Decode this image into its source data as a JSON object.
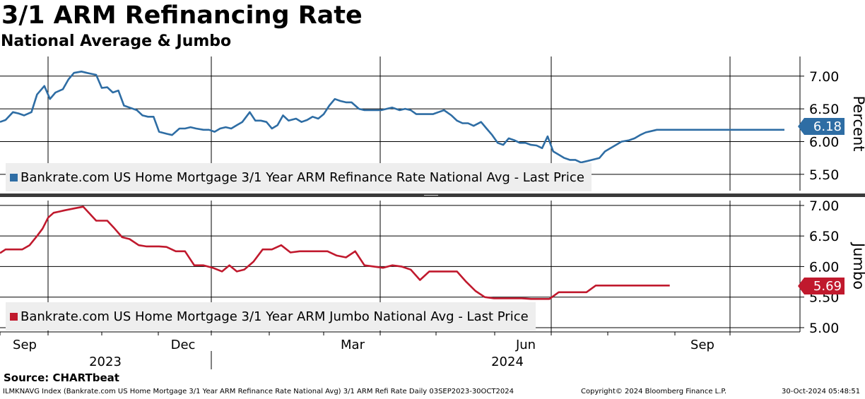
{
  "title": "3/1 ARM Refinancing Rate",
  "subtitle": "National Average & Jumbo",
  "chart_data": [
    {
      "type": "line",
      "panel": "top",
      "ylabel": "Percent",
      "ylim": [
        5.25,
        7.3
      ],
      "yticks": [
        "5.50",
        "6.00",
        "6.50",
        "7.00"
      ],
      "color": "#2e6da4",
      "legend": "Bankrate.com US Home Mortgage 3/1 Year ARM Refinance Rate National Avg - Last Price",
      "last_value_label": "6.18",
      "series": [
        {
          "name": "Bankrate.com US Home Mortgage 3/1 Year ARM Refinance Rate National Avg - Last Price",
          "x": [
            0,
            3,
            7,
            10,
            13,
            17,
            20,
            24,
            27,
            30,
            34,
            37,
            40,
            44,
            47,
            52,
            55,
            58,
            61,
            64,
            67,
            70,
            74,
            77,
            80,
            83,
            86,
            90,
            93,
            97,
            100,
            103,
            106,
            110,
            113,
            116,
            119,
            122,
            125,
            128,
            131,
            135,
            138,
            141,
            144,
            147,
            150,
            153,
            156,
            160,
            163,
            166,
            169,
            172,
            175,
            178,
            181,
            184,
            187,
            190,
            194,
            197,
            200,
            203,
            206,
            209,
            212,
            216,
            219,
            222,
            225,
            228,
            231,
            234,
            237,
            240,
            244,
            247,
            250,
            253,
            256,
            260,
            263,
            266,
            269,
            272,
            275,
            278,
            281,
            284,
            287,
            290,
            293,
            296,
            299,
            302,
            305,
            308,
            311,
            314,
            317,
            320,
            324,
            327,
            330,
            333,
            336,
            340,
            343,
            346,
            349,
            352,
            355,
            358,
            361,
            364,
            367,
            370,
            374,
            377,
            380,
            384,
            387,
            390,
            394,
            397,
            400,
            404,
            407,
            410,
            414,
            417,
            420,
            424
          ],
          "values": [
            6.3,
            6.33,
            6.45,
            6.43,
            6.4,
            6.45,
            6.72,
            6.85,
            6.65,
            6.75,
            6.8,
            6.95,
            7.05,
            7.07,
            7.05,
            7.02,
            6.82,
            6.83,
            6.75,
            6.78,
            6.55,
            6.52,
            6.48,
            6.4,
            6.38,
            6.38,
            6.15,
            6.12,
            6.1,
            6.2,
            6.2,
            6.22,
            6.2,
            6.18,
            6.18,
            6.15,
            6.2,
            6.22,
            6.2,
            6.25,
            6.3,
            6.45,
            6.32,
            6.32,
            6.3,
            6.2,
            6.25,
            6.4,
            6.32,
            6.35,
            6.3,
            6.33,
            6.38,
            6.35,
            6.42,
            6.55,
            6.65,
            6.62,
            6.6,
            6.6,
            6.5,
            6.48,
            6.48,
            6.48,
            6.48,
            6.5,
            6.52,
            6.48,
            6.5,
            6.48,
            6.42,
            6.42,
            6.42,
            6.42,
            6.45,
            6.48,
            6.4,
            6.32,
            6.28,
            6.28,
            6.24,
            6.3,
            6.2,
            6.1,
            5.98,
            5.95,
            6.05,
            6.02,
            5.98,
            5.98,
            5.95,
            5.94,
            5.9,
            6.08,
            5.85,
            5.8,
            5.75,
            5.72,
            5.72,
            5.68,
            5.7,
            5.72,
            5.75,
            5.85,
            5.9,
            5.95,
            6.0,
            6.02,
            6.05,
            6.1,
            6.14,
            6.16,
            6.18,
            6.18,
            6.18,
            6.18,
            6.18,
            6.18,
            6.18,
            6.18,
            6.18,
            6.18,
            6.18,
            6.18,
            6.18,
            6.18,
            6.18,
            6.18,
            6.18,
            6.18,
            6.18,
            6.18,
            6.18,
            6.18
          ]
        }
      ]
    },
    {
      "type": "line",
      "panel": "bottom",
      "ylabel": "Jumbo",
      "ylim": [
        4.93,
        7.08
      ],
      "yticks": [
        "5.00",
        "5.50",
        "6.00",
        "6.50",
        "7.00"
      ],
      "color": "#c0192d",
      "legend": "Bankrate.com US Home Mortgage 3/1 Year ARM Jumbo National Avg - Last Price",
      "last_value_label": "5.69",
      "series": [
        {
          "name": "Bankrate.com US Home Mortgage 3/1 Year ARM Jumbo National Avg - Last Price",
          "x": [
            0,
            3,
            7,
            12,
            16,
            20,
            23,
            26,
            29,
            32,
            35,
            40,
            45,
            52,
            55,
            58,
            62,
            66,
            70,
            75,
            79,
            82,
            86,
            90,
            95,
            100,
            105,
            110,
            115,
            120,
            124,
            128,
            132,
            137,
            142,
            147,
            152,
            157,
            162,
            167,
            172,
            177,
            182,
            187,
            192,
            197,
            202,
            207,
            212,
            217,
            222,
            227,
            232,
            237,
            242,
            247,
            252,
            257,
            262,
            267,
            272,
            277,
            282,
            287,
            292,
            297,
            302,
            307,
            312,
            317,
            322,
            327,
            332,
            337,
            342,
            347,
            352,
            357,
            362
          ],
          "values": [
            6.22,
            6.28,
            6.28,
            6.28,
            6.35,
            6.5,
            6.62,
            6.8,
            6.88,
            6.9,
            6.92,
            6.95,
            6.98,
            6.75,
            6.75,
            6.75,
            6.62,
            6.48,
            6.45,
            6.35,
            6.33,
            6.33,
            6.33,
            6.32,
            6.25,
            6.25,
            6.02,
            6.02,
            5.98,
            5.92,
            6.02,
            5.92,
            5.95,
            6.08,
            6.28,
            6.28,
            6.35,
            6.23,
            6.25,
            6.25,
            6.25,
            6.25,
            6.18,
            6.15,
            6.25,
            6.02,
            6.0,
            5.98,
            6.02,
            6.0,
            5.95,
            5.78,
            5.92,
            5.92,
            5.92,
            5.92,
            5.75,
            5.6,
            5.5,
            5.48,
            5.48,
            5.48,
            5.48,
            5.47,
            5.47,
            5.47,
            5.58,
            5.58,
            5.58,
            5.58,
            5.69,
            5.69,
            5.69,
            5.69,
            5.69,
            5.69,
            5.69,
            5.69,
            5.69
          ]
        }
      ]
    }
  ],
  "x_axis": {
    "month_labels": [
      "Sep",
      "Dec",
      "Mar",
      "Jun",
      "Sep"
    ],
    "year_labels": [
      "2023",
      "2024"
    ]
  },
  "source": "Source: CHARTbeat",
  "footer": {
    "index_info": "ILMKNAVG Index (Bankrate.com US Home Mortgage 3/1 Year ARM Refinance Rate National Avg) 3/1 ARM Refi Rate  Daily 03SEP2023-30OCT2024",
    "copyright": "Copyright© 2024 Bloomberg Finance L.P.",
    "timestamp": "30-Oct-2024 05:48:51"
  }
}
